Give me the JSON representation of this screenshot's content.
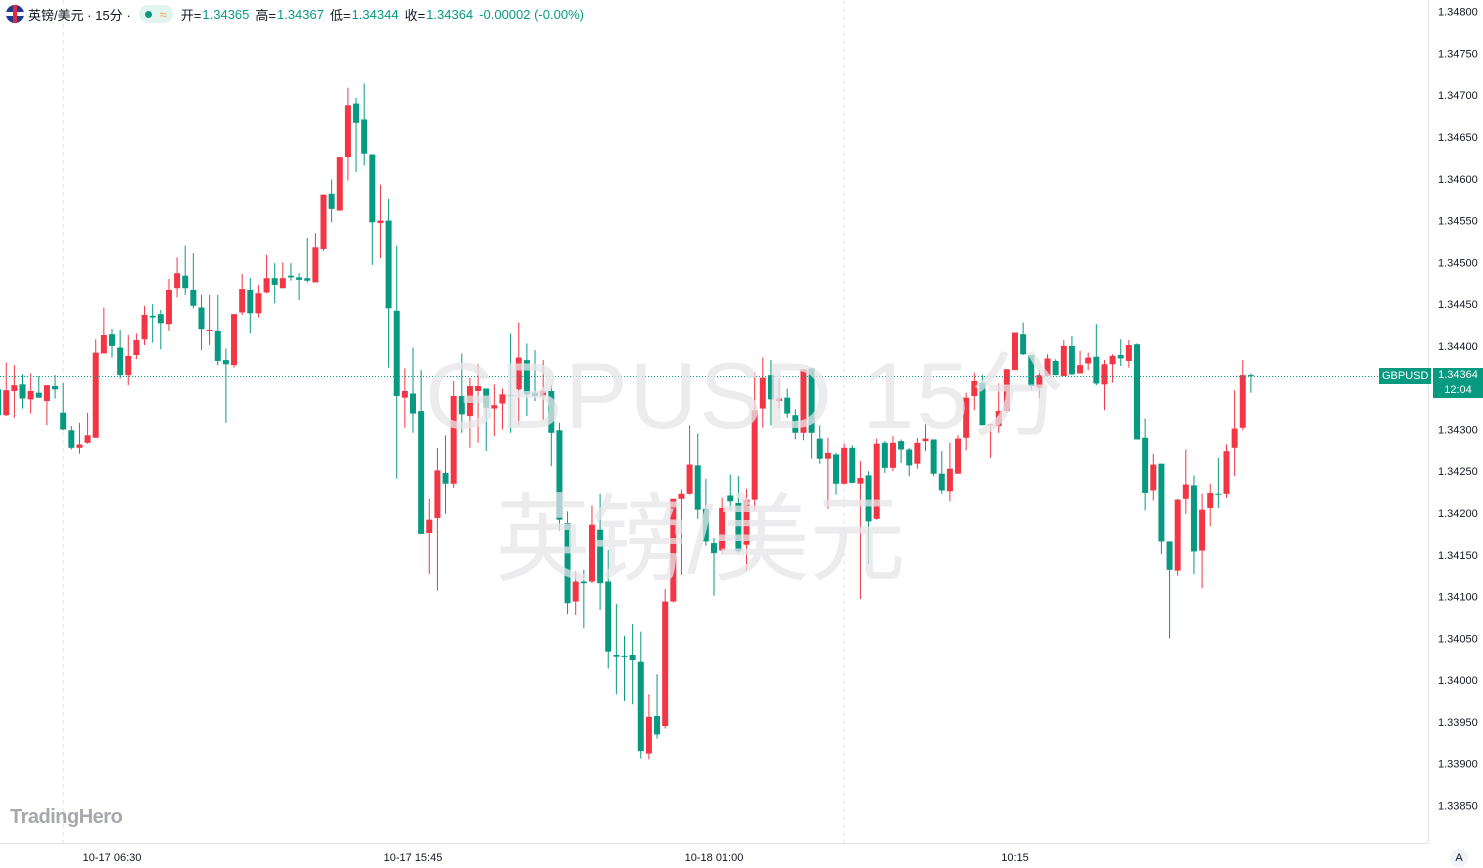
{
  "header": {
    "symbol_name": "英镑/美元",
    "separator": "·",
    "interval": "15分",
    "market_status": "open",
    "approx_icon": "≈",
    "open_label": "开=",
    "open_value": "1.34365",
    "high_label": "高=",
    "high_value": "1.34367",
    "low_label": "低=",
    "low_value": "1.34344",
    "close_label": "收=",
    "close_value": "1.34364",
    "change": "-0.00002 (-0.00%)"
  },
  "watermark": {
    "line1": "GBPUSD 15分",
    "line2": "英镑/美元"
  },
  "logo": "TradingHero",
  "last_price": {
    "symbol": "GBPUSD",
    "price": "1.34364",
    "countdown": "12:04"
  },
  "auto_scale_button": "A",
  "colors": {
    "up": "#f23645",
    "down": "#089981",
    "accent": "#089981"
  },
  "chart_data": {
    "type": "candlestick",
    "symbol": "GBPUSD",
    "interval": "15分",
    "ylim": [
      1.33805,
      1.34814
    ],
    "grid": false,
    "y_ticks": [
      "1.34800",
      "1.34750",
      "1.34700",
      "1.34650",
      "1.34600",
      "1.34550",
      "1.34500",
      "1.34450",
      "1.34400",
      "1.34350",
      "1.34300",
      "1.34250",
      "1.34200",
      "1.34150",
      "1.34100",
      "1.34050",
      "1.34000",
      "1.33950",
      "1.33900",
      "1.33850"
    ],
    "x_ticks": [
      {
        "label": "10-17 06:30",
        "candle": 14
      },
      {
        "label": "10-17 15:45",
        "candle": 51
      },
      {
        "label": "10-18 01:00",
        "candle": 88
      },
      {
        "label": "10:15",
        "candle": 125
      }
    ],
    "ohlc_fields": [
      "open",
      "high",
      "low",
      "close"
    ],
    "candles": [
      [
        1.34348,
        1.34353,
        1.34317,
        1.34317
      ],
      [
        1.34317,
        1.3438,
        1.34316,
        1.34347
      ],
      [
        1.34346,
        1.34377,
        1.34314,
        1.34353
      ],
      [
        1.34354,
        1.34366,
        1.34325,
        1.34337
      ],
      [
        1.34336,
        1.34367,
        1.34319,
        1.34346
      ],
      [
        1.34344,
        1.34364,
        1.34338,
        1.34338
      ],
      [
        1.34334,
        1.34353,
        1.34305,
        1.34353
      ],
      [
        1.34352,
        1.34365,
        1.34337,
        1.34348
      ],
      [
        1.3432,
        1.34356,
        1.34299,
        1.343
      ],
      [
        1.34299,
        1.34304,
        1.34276,
        1.34278
      ],
      [
        1.34278,
        1.34308,
        1.34271,
        1.34282
      ],
      [
        1.34284,
        1.3432,
        1.34283,
        1.34293
      ],
      [
        1.3429,
        1.34408,
        1.3429,
        1.34392
      ],
      [
        1.34391,
        1.34446,
        1.34391,
        1.34413
      ],
      [
        1.34414,
        1.3442,
        1.34386,
        1.344
      ],
      [
        1.34398,
        1.34419,
        1.34361,
        1.34365
      ],
      [
        1.34365,
        1.34413,
        1.34353,
        1.34388
      ],
      [
        1.34389,
        1.34415,
        1.34384,
        1.34407
      ],
      [
        1.34408,
        1.34448,
        1.34401,
        1.34437
      ],
      [
        1.34436,
        1.3445,
        1.34404,
        1.34434
      ],
      [
        1.34438,
        1.34443,
        1.34396,
        1.34427
      ],
      [
        1.34426,
        1.3448,
        1.34418,
        1.34467
      ],
      [
        1.34469,
        1.34506,
        1.34458,
        1.34487
      ],
      [
        1.34484,
        1.3452,
        1.34461,
        1.34469
      ],
      [
        1.34467,
        1.34511,
        1.34445,
        1.34448
      ],
      [
        1.34446,
        1.34461,
        1.34395,
        1.3442
      ],
      [
        1.34418,
        1.34461,
        1.34401,
        1.34419
      ],
      [
        1.34418,
        1.34461,
        1.34377,
        1.34382
      ],
      [
        1.34383,
        1.34397,
        1.34308,
        1.34378
      ],
      [
        1.34377,
        1.34438,
        1.34374,
        1.34438
      ],
      [
        1.3444,
        1.34486,
        1.34437,
        1.34468
      ],
      [
        1.34467,
        1.34481,
        1.34415,
        1.34439
      ],
      [
        1.34439,
        1.34473,
        1.34434,
        1.34463
      ],
      [
        1.34464,
        1.34509,
        1.34463,
        1.34481
      ],
      [
        1.34481,
        1.34499,
        1.34451,
        1.34473
      ],
      [
        1.34469,
        1.345,
        1.34469,
        1.34481
      ],
      [
        1.34484,
        1.34499,
        1.34478,
        1.34482
      ],
      [
        1.34482,
        1.34487,
        1.34455,
        1.34479
      ],
      [
        1.34481,
        1.34529,
        1.34476,
        1.34478
      ],
      [
        1.34476,
        1.34535,
        1.34476,
        1.34518
      ],
      [
        1.34516,
        1.34581,
        1.34514,
        1.34581
      ],
      [
        1.34582,
        1.34599,
        1.34548,
        1.34564
      ],
      [
        1.34562,
        1.34626,
        1.34562,
        1.34626
      ],
      [
        1.34626,
        1.34709,
        1.34598,
        1.34688
      ],
      [
        1.3469,
        1.34697,
        1.34608,
        1.34667
      ],
      [
        1.34671,
        1.34714,
        1.34616,
        1.3463
      ],
      [
        1.34629,
        1.34629,
        1.34497,
        1.34548
      ],
      [
        1.34547,
        1.34593,
        1.34505,
        1.3455
      ],
      [
        1.3455,
        1.34576,
        1.34374,
        1.34445
      ],
      [
        1.34442,
        1.3452,
        1.34241,
        1.3434
      ],
      [
        1.34338,
        1.34373,
        1.34302,
        1.34346
      ],
      [
        1.34343,
        1.34398,
        1.34296,
        1.34319
      ],
      [
        1.34322,
        1.34371,
        1.34175,
        1.34175
      ],
      [
        1.34176,
        1.34217,
        1.34127,
        1.34192
      ],
      [
        1.34194,
        1.34278,
        1.34107,
        1.34251
      ],
      [
        1.34248,
        1.34293,
        1.34199,
        1.34235
      ],
      [
        1.34235,
        1.34358,
        1.3423,
        1.3434
      ],
      [
        1.3434,
        1.34391,
        1.34296,
        1.34318
      ],
      [
        1.34316,
        1.34362,
        1.34278,
        1.34352
      ],
      [
        1.34346,
        1.34378,
        1.34284,
        1.34352
      ],
      [
        1.34349,
        1.34349,
        1.34274,
        1.34326
      ],
      [
        1.34325,
        1.34354,
        1.34292,
        1.34329
      ],
      [
        1.34331,
        1.34349,
        1.343,
        1.34342
      ],
      [
        1.34341,
        1.34415,
        1.34296,
        1.3434
      ],
      [
        1.34348,
        1.34428,
        1.34305,
        1.34386
      ],
      [
        1.34383,
        1.34403,
        1.34316,
        1.34342
      ],
      [
        1.34344,
        1.34395,
        1.34334,
        1.3434
      ],
      [
        1.3434,
        1.34383,
        1.34311,
        1.34346
      ],
      [
        1.34346,
        1.34353,
        1.34256,
        1.34296
      ],
      [
        1.34299,
        1.34308,
        1.34179,
        1.34192
      ],
      [
        1.34188,
        1.34202,
        1.34079,
        1.34092
      ],
      [
        1.34094,
        1.3413,
        1.34078,
        1.34118
      ],
      [
        1.34118,
        1.34132,
        1.34062,
        1.34116
      ],
      [
        1.34118,
        1.34209,
        1.34116,
        1.34186
      ],
      [
        1.3418,
        1.34223,
        1.34084,
        1.34116
      ],
      [
        1.34118,
        1.34156,
        1.34014,
        1.34034
      ],
      [
        1.3403,
        1.34091,
        1.33983,
        1.34028
      ],
      [
        1.34029,
        1.34053,
        1.33975,
        1.34028
      ],
      [
        1.3403,
        1.34067,
        1.33971,
        1.34024
      ],
      [
        1.34022,
        1.34058,
        1.33906,
        1.33915
      ],
      [
        1.33912,
        1.33983,
        1.33905,
        1.33956
      ],
      [
        1.33957,
        1.34007,
        1.3393,
        1.33935
      ],
      [
        1.33945,
        1.34109,
        1.33942,
        1.34094
      ],
      [
        1.34094,
        1.34217,
        1.34093,
        1.34217
      ],
      [
        1.34217,
        1.34228,
        1.34126,
        1.34223
      ],
      [
        1.34223,
        1.34305,
        1.34222,
        1.34258
      ],
      [
        1.34257,
        1.34295,
        1.34193,
        1.34204
      ],
      [
        1.34205,
        1.34241,
        1.34161,
        1.34166
      ],
      [
        1.34164,
        1.3417,
        1.34101,
        1.34152
      ],
      [
        1.34155,
        1.34218,
        1.34151,
        1.34206
      ],
      [
        1.34221,
        1.34246,
        1.34203,
        1.34214
      ],
      [
        1.34212,
        1.34244,
        1.34152,
        1.34154
      ],
      [
        1.34162,
        1.34229,
        1.34131,
        1.34216
      ],
      [
        1.34216,
        1.34368,
        1.34203,
        1.34323
      ],
      [
        1.34325,
        1.34386,
        1.34302,
        1.34362
      ],
      [
        1.34365,
        1.34383,
        1.34305,
        1.34336
      ],
      [
        1.34334,
        1.34361,
        1.34325,
        1.34337
      ],
      [
        1.34338,
        1.34349,
        1.34314,
        1.34319
      ],
      [
        1.34317,
        1.34324,
        1.34288,
        1.34296
      ],
      [
        1.34296,
        1.34372,
        1.34287,
        1.34372
      ],
      [
        1.34373,
        1.34374,
        1.34265,
        1.34296
      ],
      [
        1.34289,
        1.34305,
        1.34259,
        1.34265
      ],
      [
        1.34265,
        1.3429,
        1.34205,
        1.34272
      ],
      [
        1.3427,
        1.34272,
        1.34222,
        1.34235
      ],
      [
        1.34235,
        1.34283,
        1.34234,
        1.34278
      ],
      [
        1.34278,
        1.34281,
        1.34236,
        1.34236
      ],
      [
        1.34235,
        1.34262,
        1.34097,
        1.34242
      ],
      [
        1.34245,
        1.3425,
        1.34139,
        1.3419
      ],
      [
        1.34193,
        1.34289,
        1.34192,
        1.34283
      ],
      [
        1.34284,
        1.34286,
        1.34248,
        1.34254
      ],
      [
        1.34254,
        1.34292,
        1.3425,
        1.34284
      ],
      [
        1.34286,
        1.34288,
        1.3426,
        1.34276
      ],
      [
        1.34276,
        1.34278,
        1.34244,
        1.34257
      ],
      [
        1.34259,
        1.3429,
        1.34253,
        1.34284
      ],
      [
        1.34286,
        1.34306,
        1.34274,
        1.34289
      ],
      [
        1.34288,
        1.34288,
        1.34244,
        1.34247
      ],
      [
        1.34247,
        1.34274,
        1.34223,
        1.34227
      ],
      [
        1.34226,
        1.34284,
        1.34214,
        1.34253
      ],
      [
        1.34247,
        1.34293,
        1.34247,
        1.34289
      ],
      [
        1.3429,
        1.34344,
        1.34275,
        1.34338
      ],
      [
        1.3434,
        1.34368,
        1.34323,
        1.34358
      ],
      [
        1.34356,
        1.34365,
        1.34305,
        1.34305
      ],
      [
        1.34305,
        1.34307,
        1.34266,
        1.34306
      ],
      [
        1.34304,
        1.34355,
        1.34296,
        1.34322
      ],
      [
        1.34322,
        1.34372,
        1.3432,
        1.34372
      ],
      [
        1.34371,
        1.34416,
        1.34371,
        1.34416
      ],
      [
        1.34414,
        1.34428,
        1.34389,
        1.3439
      ],
      [
        1.34389,
        1.34389,
        1.34347,
        1.34352
      ],
      [
        1.3435,
        1.34371,
        1.34337,
        1.34365
      ],
      [
        1.34364,
        1.3439,
        1.34364,
        1.34385
      ],
      [
        1.34382,
        1.34384,
        1.34365,
        1.34365
      ],
      [
        1.34364,
        1.34407,
        1.34364,
        1.344
      ],
      [
        1.344,
        1.34412,
        1.34365,
        1.34366
      ],
      [
        1.34367,
        1.34394,
        1.34367,
        1.34377
      ],
      [
        1.34379,
        1.34392,
        1.34371,
        1.34386
      ],
      [
        1.34387,
        1.34426,
        1.34353,
        1.34355
      ],
      [
        1.34354,
        1.34383,
        1.34323,
        1.34378
      ],
      [
        1.34378,
        1.3439,
        1.34356,
        1.34388
      ],
      [
        1.34389,
        1.34408,
        1.34376,
        1.34385
      ],
      [
        1.34382,
        1.34407,
        1.34374,
        1.34401
      ],
      [
        1.34402,
        1.34403,
        1.34288,
        1.34288
      ],
      [
        1.3429,
        1.34313,
        1.34203,
        1.34224
      ],
      [
        1.34227,
        1.34271,
        1.34215,
        1.34258
      ],
      [
        1.34259,
        1.34259,
        1.34151,
        1.34166
      ],
      [
        1.34166,
        1.34166,
        1.3405,
        1.34132
      ],
      [
        1.34131,
        1.34217,
        1.34125,
        1.34216
      ],
      [
        1.34217,
        1.34276,
        1.34199,
        1.34234
      ],
      [
        1.34233,
        1.34245,
        1.34127,
        1.34154
      ],
      [
        1.34155,
        1.34223,
        1.3411,
        1.34204
      ],
      [
        1.34206,
        1.34235,
        1.34184,
        1.34224
      ],
      [
        1.34223,
        1.34266,
        1.34206,
        1.34222
      ],
      [
        1.34223,
        1.34282,
        1.34218,
        1.34274
      ],
      [
        1.34278,
        1.34347,
        1.34244,
        1.34301
      ],
      [
        1.34302,
        1.34383,
        1.34299,
        1.34365
      ],
      [
        1.34365,
        1.34367,
        1.34344,
        1.34364
      ]
    ],
    "last_price": 1.34364
  }
}
